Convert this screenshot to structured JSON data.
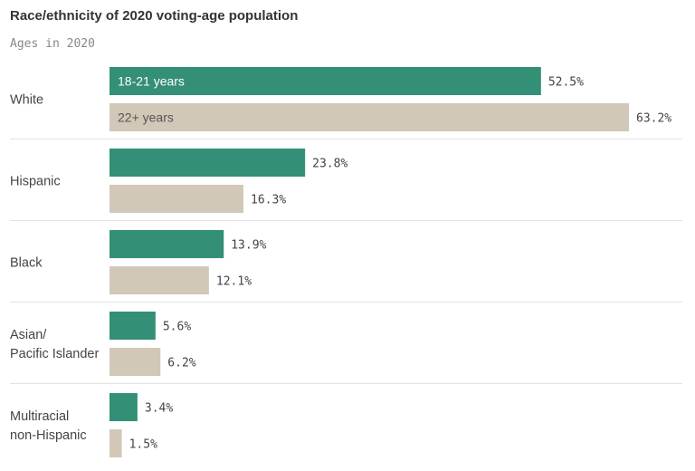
{
  "chart_data": {
    "type": "bar",
    "orientation": "horizontal",
    "title": "Race/ethnicity of 2020 voting-age population",
    "subtitle": "Ages in 2020",
    "categories": [
      [
        "White"
      ],
      [
        "Hispanic"
      ],
      [
        "Black"
      ],
      [
        "Asian/",
        "Pacific Islander"
      ],
      [
        "Multiracial",
        "non-Hispanic"
      ]
    ],
    "series": [
      {
        "name": "18-21 years",
        "color": "#338f75",
        "label_color": "#ffffff",
        "values": [
          52.5,
          23.8,
          13.9,
          5.6,
          3.4
        ]
      },
      {
        "name": "22+ years",
        "color": "#d2c8b8",
        "label_color": "#555555",
        "values": [
          63.2,
          16.3,
          12.1,
          6.2,
          1.5
        ]
      }
    ],
    "value_format": "{v}%",
    "xlim": [
      0,
      63.2
    ],
    "legend": "inside first bars",
    "grid": false,
    "divider_color": "#e2e2e2"
  }
}
